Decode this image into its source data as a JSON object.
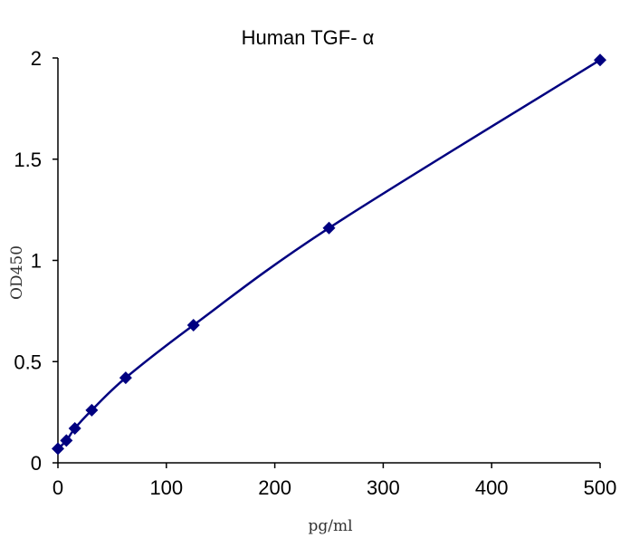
{
  "chart_data": {
    "type": "scatter",
    "title": "Human TGF- α",
    "xlabel": "pg/ml",
    "ylabel": "OD450",
    "xlim": [
      0,
      500
    ],
    "ylim": [
      0,
      2
    ],
    "x_ticks": [
      "0",
      "100",
      "200",
      "300",
      "400",
      "500"
    ],
    "y_ticks": [
      "0",
      "0.5",
      "1",
      "1.5",
      "2"
    ],
    "grid": false,
    "legend": "none",
    "marker": "diamond",
    "color": "#000080",
    "series": [
      {
        "x": [
          0,
          7.8,
          15.6,
          31.2,
          62.5,
          125,
          250,
          500
        ],
        "y": [
          0.07,
          0.11,
          0.17,
          0.26,
          0.42,
          0.68,
          1.16,
          1.99
        ]
      }
    ]
  }
}
